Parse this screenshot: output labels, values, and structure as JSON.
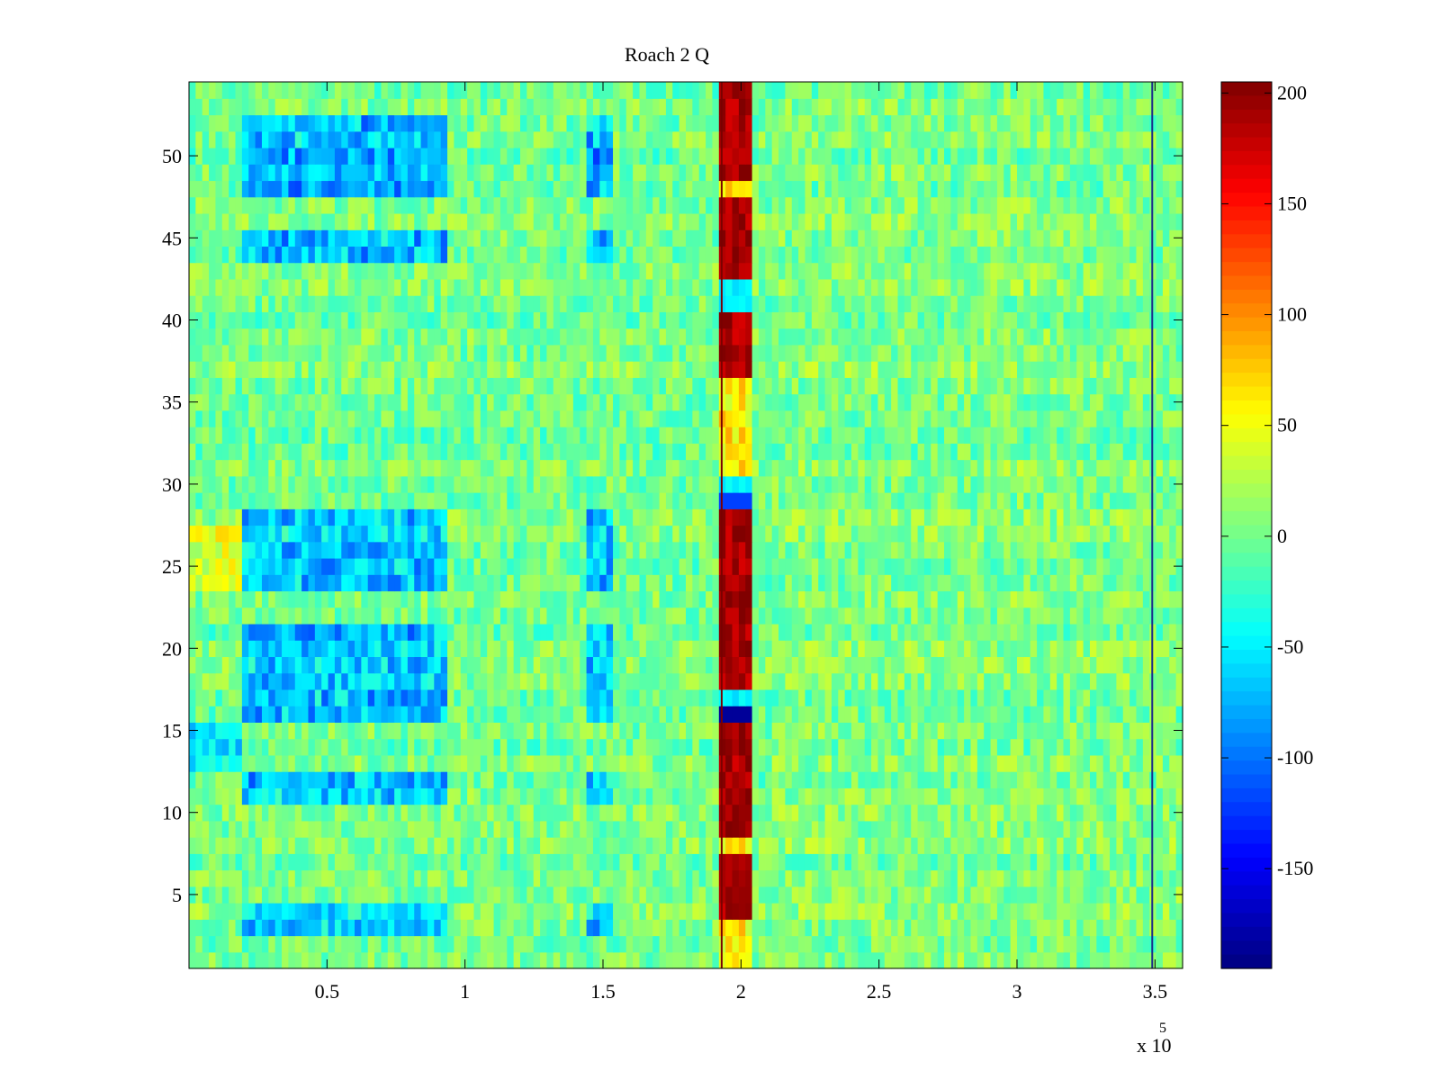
{
  "chart_data": {
    "type": "heatmap",
    "title": "Roach 2 Q",
    "xlabel": "",
    "ylabel": "",
    "x_exponent_label": "x 10",
    "x_exponent_power": "5",
    "xlim": [
      0,
      3.6
    ],
    "ylim": [
      0.5,
      54.5
    ],
    "x_ticks": [
      0.5,
      1,
      1.5,
      2,
      2.5,
      3,
      3.5
    ],
    "x_tick_labels": [
      "0.5",
      "1",
      "1.5",
      "2",
      "2.5",
      "3",
      "3.5"
    ],
    "y_ticks": [
      5,
      10,
      15,
      20,
      25,
      30,
      35,
      40,
      45,
      50
    ],
    "y_tick_labels": [
      "5",
      "10",
      "15",
      "20",
      "25",
      "30",
      "35",
      "40",
      "45",
      "50"
    ],
    "n_rows": 54,
    "colormap": "jet",
    "colorbar": {
      "clim": [
        -195,
        205
      ],
      "ticks": [
        200,
        150,
        100,
        50,
        0,
        -50,
        -100,
        -150
      ],
      "tick_labels": [
        "200",
        "150",
        "100",
        "50",
        "0",
        "-50",
        "-100",
        "-150"
      ]
    },
    "features": {
      "hot_band_x": [
        1.93,
        2.03
      ],
      "cold_rows_in_band": [
        16,
        29
      ],
      "cyan_blocks_x": [
        [
          0.2,
          0.93
        ],
        [
          1.45,
          1.54
        ]
      ],
      "cyan_block_rows": [
        [
          3,
          4
        ],
        [
          11,
          12
        ],
        [
          16,
          21
        ],
        [
          24,
          28
        ],
        [
          44,
          45
        ],
        [
          48,
          49
        ],
        [
          50,
          52
        ]
      ],
      "thin_line_x": [
        1.93,
        3.49
      ]
    }
  }
}
